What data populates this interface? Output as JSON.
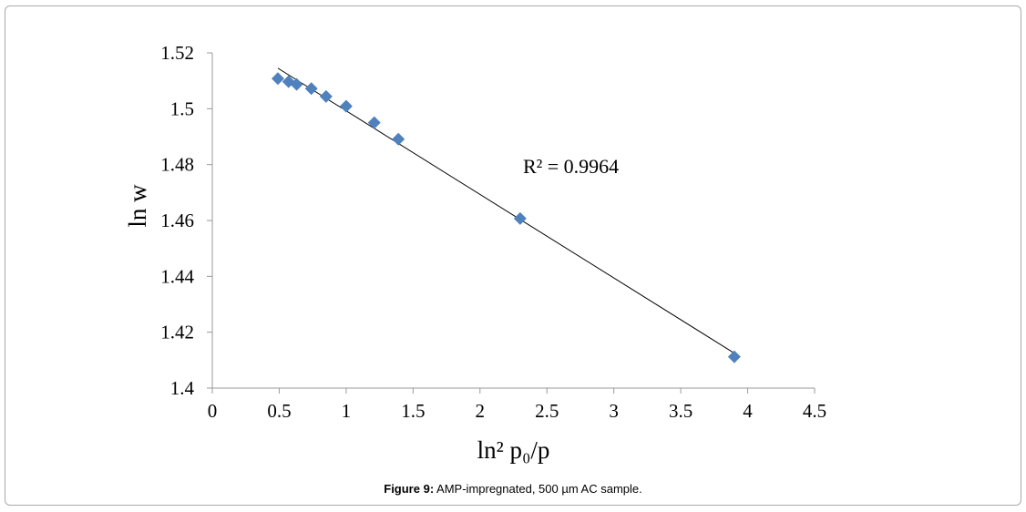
{
  "chart_data": {
    "type": "scatter",
    "xlabel": "ln² p₀/p",
    "ylabel": "ln w",
    "xlim": [
      0,
      4.5
    ],
    "ylim": [
      1.4,
      1.52
    ],
    "x_ticks": [
      "0",
      "0.5",
      "1",
      "1.5",
      "2",
      "2.5",
      "3",
      "3.5",
      "4",
      "4.5"
    ],
    "y_ticks": [
      "1.4",
      "1.42",
      "1.44",
      "1.46",
      "1.48",
      "1.5",
      "1.52"
    ],
    "grid": false,
    "points": [
      {
        "x": 0.49,
        "y": 1.5108
      },
      {
        "x": 0.57,
        "y": 1.5097
      },
      {
        "x": 0.63,
        "y": 1.5087
      },
      {
        "x": 0.74,
        "y": 1.5072
      },
      {
        "x": 0.85,
        "y": 1.5044
      },
      {
        "x": 1.0,
        "y": 1.5009
      },
      {
        "x": 1.21,
        "y": 1.495
      },
      {
        "x": 1.39,
        "y": 1.4891
      },
      {
        "x": 2.3,
        "y": 1.4607
      },
      {
        "x": 3.9,
        "y": 1.4112
      }
    ],
    "trendline": {
      "x": [
        0.49,
        3.9
      ],
      "y": [
        1.5145,
        1.4125
      ]
    },
    "annotation": "R² = 0.9964",
    "marker_color": "#4f81bd",
    "line_color": "#000000"
  },
  "caption": {
    "label": "Figure 9:",
    "text": " AMP-impregnated, 500 µm AC sample."
  }
}
